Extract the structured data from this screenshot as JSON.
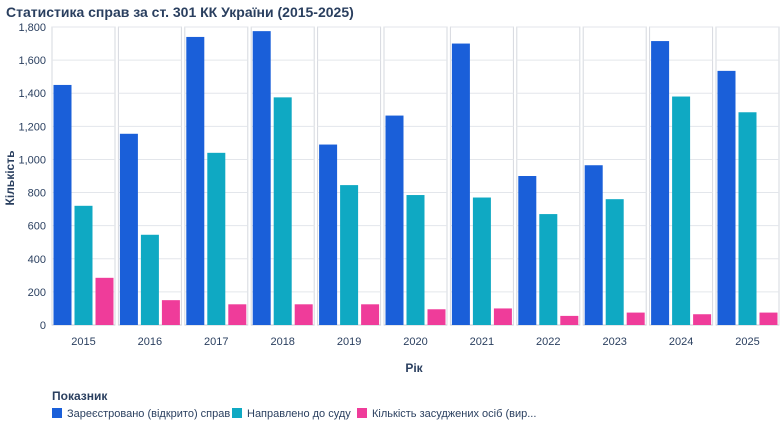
{
  "chart_data": {
    "type": "bar",
    "title": "Статистика справ за ст. 301 КК України (2015-2025)",
    "xlabel": "Рік",
    "ylabel": "Кількість",
    "ylim": [
      0,
      1800
    ],
    "yticks": [
      0,
      200,
      400,
      600,
      800,
      1000,
      1200,
      1400,
      1600,
      1800
    ],
    "ytick_labels": [
      "0",
      "200",
      "400",
      "600",
      "800",
      "1,000",
      "1,200",
      "1,400",
      "1,600",
      "1,800"
    ],
    "categories": [
      "2015",
      "2016",
      "2017",
      "2018",
      "2019",
      "2020",
      "2021",
      "2022",
      "2023",
      "2024",
      "2025"
    ],
    "series": [
      {
        "name": "Зареєстровано (відкрито) справ",
        "color": "#1a5fd9",
        "values": [
          1450,
          1155,
          1740,
          1775,
          1090,
          1265,
          1700,
          900,
          965,
          1715,
          1535
        ]
      },
      {
        "name": "Направлено до суду",
        "color": "#0fa9c3",
        "values": [
          720,
          545,
          1040,
          1375,
          845,
          785,
          770,
          670,
          760,
          1380,
          1285
        ]
      },
      {
        "name": "Кількість засуджених осіб (вир...",
        "color": "#ef3c9a",
        "values": [
          285,
          150,
          125,
          125,
          125,
          95,
          100,
          55,
          75,
          65,
          75
        ]
      }
    ],
    "legend": {
      "title": "Показник",
      "position": "bottom-left"
    },
    "faceted_by_year": true
  }
}
